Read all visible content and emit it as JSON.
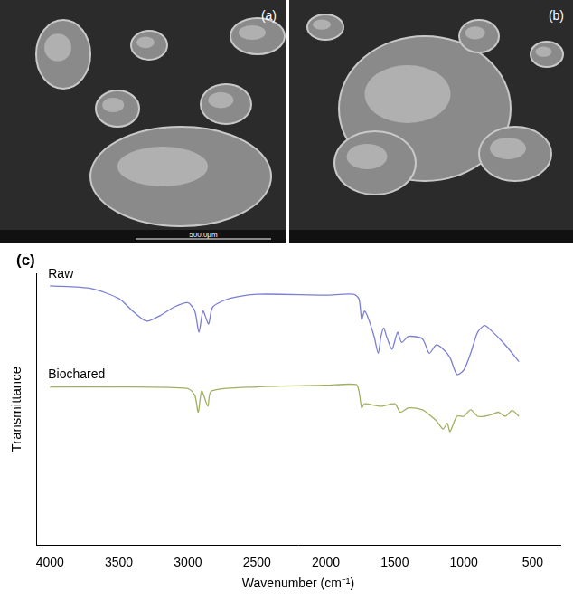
{
  "panels": [
    {
      "label": "(a)",
      "scale_bar": "500.0μm"
    },
    {
      "label": "(b)"
    }
  ],
  "chart_data": {
    "type": "line",
    "panel_label": "(c)",
    "x_label": "Wavenumber (cm⁻¹)",
    "y_label": "Transmittance",
    "xlim": [
      4100,
      300
    ],
    "xticks": [
      4000,
      3500,
      3000,
      2500,
      2000,
      1500,
      1000,
      500
    ],
    "ylim": [
      0,
      100
    ],
    "tick_labels": "x",
    "grid": false,
    "series": [
      {
        "name": "Raw",
        "color": "#7b7fd4",
        "x": [
          4000,
          3700,
          3500,
          3400,
          3300,
          3200,
          3100,
          3000,
          2950,
          2920,
          2890,
          2850,
          2820,
          2700,
          2500,
          2000,
          1800,
          1760,
          1740,
          1720,
          1700,
          1650,
          1620,
          1600,
          1580,
          1560,
          1520,
          1480,
          1450,
          1400,
          1300,
          1250,
          1200,
          1150,
          1100,
          1050,
          1000,
          950,
          900,
          850,
          800,
          700,
          600
        ],
        "values": [
          95.4,
          94.4,
          90.7,
          86.1,
          82.4,
          84.5,
          87.6,
          89.2,
          86.1,
          78.3,
          86.1,
          81.4,
          87.6,
          90.7,
          92.3,
          92.0,
          92.3,
          90.7,
          83.0,
          86.1,
          84.5,
          76.8,
          70.6,
          76.8,
          79.9,
          76.8,
          72.1,
          78.3,
          74.6,
          76.8,
          75.9,
          70.6,
          73.7,
          72.1,
          69.0,
          62.8,
          64.4,
          70.6,
          78.3,
          80.8,
          78.9,
          73.7,
          67.5
        ]
      },
      {
        "name": "Biochared",
        "color": "#9fb060",
        "x": [
          4000,
          3500,
          3000,
          2950,
          2925,
          2900,
          2855,
          2830,
          2500,
          2000,
          1780,
          1760,
          1740,
          1720,
          1600,
          1500,
          1460,
          1400,
          1300,
          1250,
          1200,
          1150,
          1120,
          1100,
          1050,
          1000,
          950,
          900,
          850,
          800,
          750,
          700,
          650,
          600
        ],
        "values": [
          58.2,
          58.2,
          57.6,
          55.1,
          48.9,
          56.7,
          51.1,
          56.7,
          58.2,
          58.8,
          59.1,
          56.7,
          50.5,
          52.0,
          51.1,
          52.0,
          48.9,
          50.5,
          49.8,
          48.0,
          45.8,
          42.7,
          44.9,
          41.8,
          47.4,
          47.4,
          49.8,
          47.4,
          47.4,
          48.0,
          48.9,
          47.4,
          49.5,
          47.4
        ]
      }
    ]
  }
}
